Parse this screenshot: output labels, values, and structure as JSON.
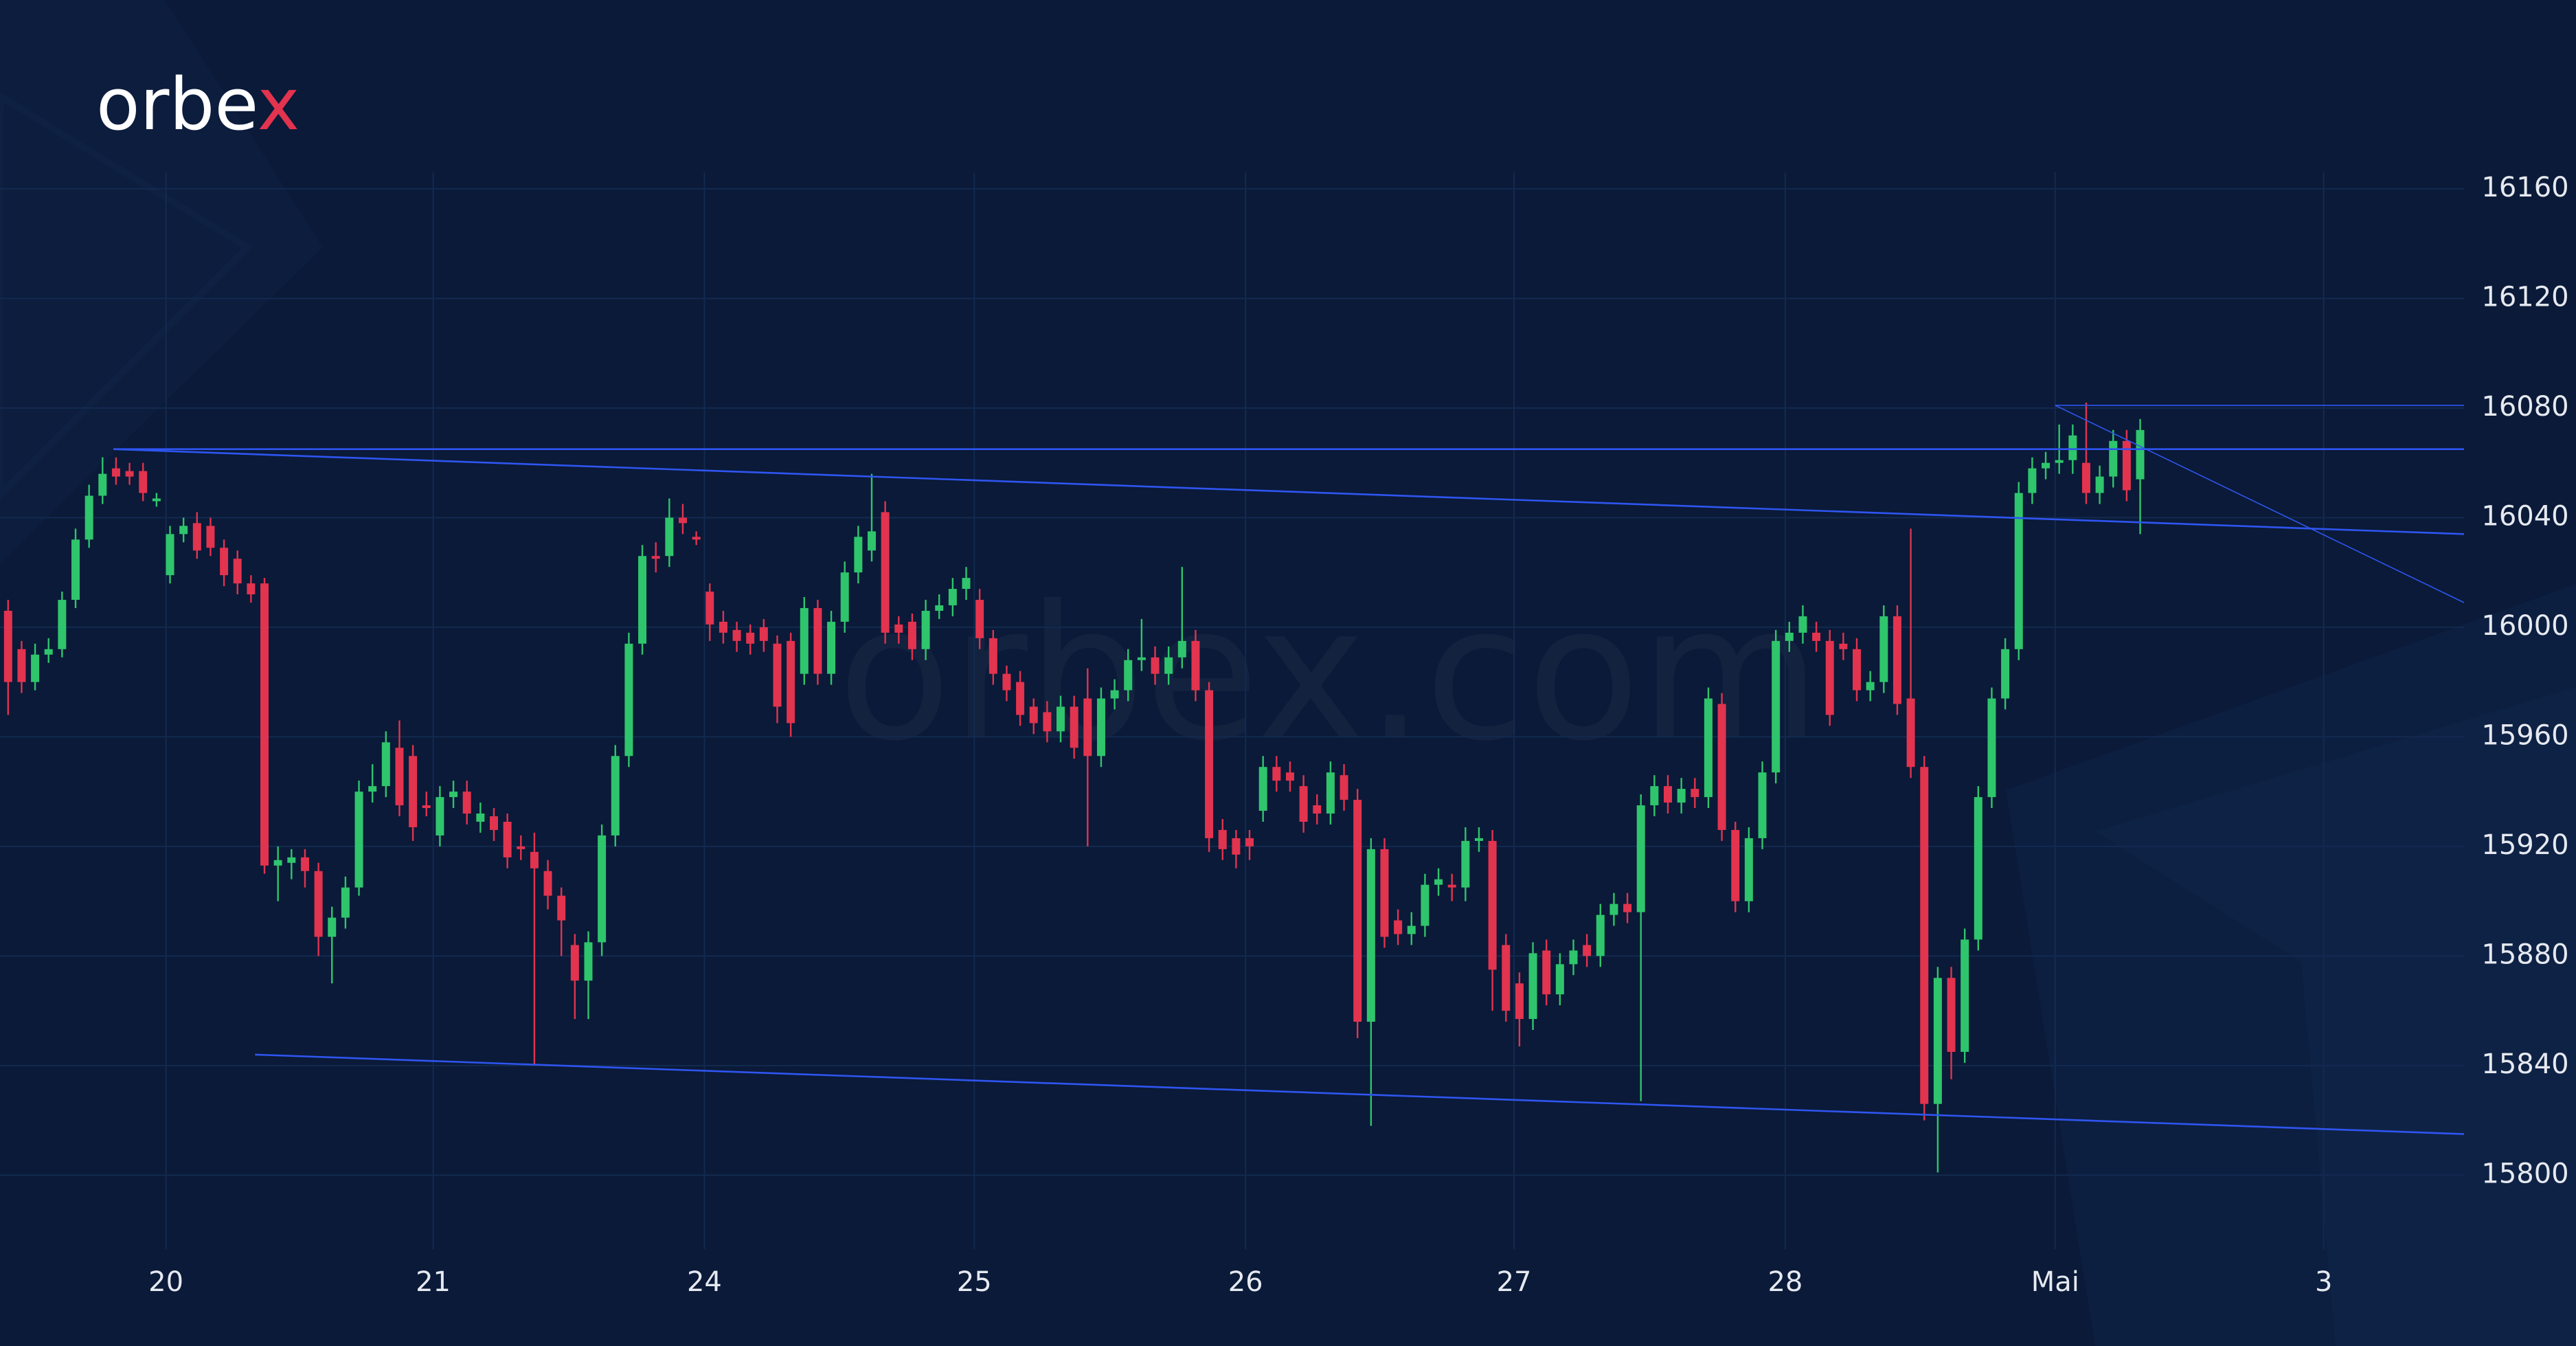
{
  "logo": {
    "text": "orbe",
    "accent": "x"
  },
  "watermark": "orbex.com",
  "chart_data": {
    "type": "candlestick",
    "up_color": "#2fc56c",
    "down_color": "#e2334f",
    "trendline_color": "#2f55f0",
    "grid": true,
    "xlim": [
      -0.6,
      182
    ],
    "ylim": [
      15773,
      16166
    ],
    "yticks": [
      15800,
      15840,
      15880,
      15920,
      15960,
      16000,
      16040,
      16080,
      16120,
      16160
    ],
    "xticks": [
      {
        "value": 11.7,
        "label": "20"
      },
      {
        "value": 31.5,
        "label": "21"
      },
      {
        "value": 51.6,
        "label": "24"
      },
      {
        "value": 71.6,
        "label": "25"
      },
      {
        "value": 91.7,
        "label": "26"
      },
      {
        "value": 111.6,
        "label": "27"
      },
      {
        "value": 131.7,
        "label": "28"
      },
      {
        "value": 151.7,
        "label": "Mai"
      },
      {
        "value": 171.6,
        "label": "3"
      }
    ],
    "open": [
      16006,
      15992,
      15980,
      15990,
      15992,
      16010,
      16032,
      16048,
      16058,
      16057,
      16057,
      16046,
      16019,
      16034,
      16038,
      16037,
      16029,
      16025,
      16016,
      16016,
      15913,
      15914,
      15916,
      15911,
      15887,
      15894,
      15905,
      15940,
      15942,
      15956,
      15953,
      15935,
      15924,
      15938,
      15940,
      15929,
      15931,
      15929,
      15920,
      15918,
      15911,
      15902,
      15884,
      15871,
      15885,
      15924,
      15953,
      15994,
      16026,
      16026,
      16040,
      16033,
      16013,
      16002,
      15999,
      15998,
      16000,
      15994,
      15995,
      15983,
      16007,
      15983,
      16002,
      16020,
      16028,
      16042,
      16001,
      16002,
      15992,
      16006,
      16008,
      16014,
      16010,
      15996,
      15983,
      15980,
      15971,
      15969,
      15962,
      15971,
      15974,
      15953,
      15974,
      15977,
      15988,
      15989,
      15983,
      15989,
      15995,
      15977,
      15926,
      15923,
      15923,
      15933,
      15949,
      15947,
      15942,
      15935,
      15932,
      15946,
      15937,
      15856,
      15919,
      15893,
      15888,
      15891,
      15906,
      15906,
      15905,
      15922,
      15922,
      15884,
      15870,
      15857,
      15882,
      15866,
      15877,
      15884,
      15880,
      15895,
      15899,
      15896,
      15935,
      15942,
      15936,
      15941,
      15938,
      15972,
      15926,
      15900,
      15923,
      15947,
      15995,
      15998,
      15998,
      15995,
      15994,
      15992,
      15977,
      15980,
      16004,
      15974,
      15949,
      15826,
      15872,
      15845,
      15886,
      15938,
      15974,
      15992,
      16049,
      16058,
      16060,
      16061,
      16060,
      16049,
      16055,
      16068,
      16054
    ],
    "high": [
      16010,
      15995,
      15994,
      15996,
      16013,
      16036,
      16052,
      16062,
      16062,
      16060,
      16060,
      16049,
      16037,
      16040,
      16042,
      16040,
      16032,
      16028,
      16019,
      16018,
      15920,
      15919,
      15919,
      15914,
      15898,
      15909,
      15944,
      15950,
      15962,
      15966,
      15957,
      15940,
      15942,
      15944,
      15944,
      15936,
      15934,
      15932,
      15924,
      15925,
      15915,
      15905,
      15888,
      15889,
      15928,
      15957,
      15998,
      16030,
      16031,
      16047,
      16045,
      16035,
      16016,
      16006,
      16002,
      16001,
      16003,
      15997,
      15998,
      16011,
      16010,
      16006,
      16024,
      16037,
      16056,
      16046,
      16004,
      16005,
      16010,
      16012,
      16018,
      16022,
      16014,
      15999,
      15986,
      15984,
      15974,
      15973,
      15975,
      15975,
      15985,
      15978,
      15981,
      15992,
      16003,
      15993,
      15993,
      16022,
      15999,
      15980,
      15930,
      15926,
      15926,
      15953,
      15953,
      15951,
      15946,
      15939,
      15951,
      15950,
      15941,
      15923,
      15923,
      15897,
      15896,
      15910,
      15912,
      15910,
      15927,
      15927,
      15926,
      15888,
      15874,
      15885,
      15886,
      15881,
      15886,
      15888,
      15899,
      15903,
      15903,
      15939,
      15946,
      15946,
      15945,
      15945,
      15978,
      15976,
      15929,
      15927,
      15951,
      15999,
      16002,
      16008,
      16002,
      15999,
      15998,
      15996,
      15984,
      16008,
      16008,
      16036,
      15953,
      15876,
      15876,
      15890,
      15942,
      15978,
      15996,
      16053,
      16062,
      16064,
      16074,
      16074,
      16082,
      16059,
      16072,
      16072,
      16076
    ],
    "low": [
      15968,
      15976,
      15977,
      15987,
      15989,
      16007,
      16029,
      16045,
      16052,
      16052,
      16046,
      16044,
      16016,
      16031,
      16025,
      16026,
      16015,
      16012,
      16009,
      15910,
      15900,
      15908,
      15905,
      15880,
      15870,
      15890,
      15902,
      15936,
      15938,
      15931,
      15922,
      15931,
      15920,
      15934,
      15928,
      15925,
      15922,
      15912,
      15915,
      15840,
      15897,
      15880,
      15857,
      15857,
      15880,
      15920,
      15949,
      15990,
      16020,
      16022,
      16034,
      16030,
      15995,
      15994,
      15991,
      15990,
      15991,
      15965,
      15960,
      15979,
      15979,
      15979,
      15998,
      16016,
      16024,
      15994,
      15994,
      15988,
      15988,
      16003,
      16004,
      16010,
      15992,
      15979,
      15973,
      15964,
      15961,
      15958,
      15958,
      15952,
      15920,
      15949,
      15970,
      15973,
      15984,
      15979,
      15979,
      15985,
      15973,
      15918,
      15915,
      15912,
      15915,
      15929,
      15940,
      15940,
      15925,
      15928,
      15928,
      15933,
      15850,
      15818,
      15883,
      15884,
      15884,
      15887,
      15902,
      15900,
      15900,
      15918,
      15860,
      15856,
      15847,
      15853,
      15862,
      15862,
      15873,
      15876,
      15876,
      15891,
      15892,
      15827,
      15931,
      15932,
      15932,
      15934,
      15934,
      15922,
      15896,
      15896,
      15919,
      15943,
      15991,
      15994,
      15991,
      15964,
      15988,
      15973,
      15973,
      15976,
      15968,
      15945,
      15820,
      15801,
      15835,
      15841,
      15882,
      15934,
      15970,
      15988,
      16045,
      16054,
      16056,
      16056,
      16045,
      16045,
      16051,
      16046,
      16034
    ],
    "close": [
      15980,
      15980,
      15990,
      15992,
      16010,
      16032,
      16048,
      16056,
      16055,
      16055,
      16049,
      16047,
      16034,
      16037,
      16028,
      16029,
      16019,
      16016,
      16012,
      15913,
      15915,
      15916,
      15911,
      15887,
      15894,
      15905,
      15940,
      15942,
      15958,
      15935,
      15927,
      15934,
      15938,
      15940,
      15932,
      15932,
      15926,
      15916,
      15919,
      15912,
      15902,
      15893,
      15871,
      15885,
      15924,
      15953,
      15994,
      16026,
      16025,
      16040,
      16038,
      16032,
      16001,
      15998,
      15995,
      15994,
      15995,
      15971,
      15965,
      16007,
      15983,
      16002,
      16020,
      16033,
      16035,
      15998,
      15998,
      15992,
      16006,
      16008,
      16014,
      16018,
      15996,
      15983,
      15977,
      15968,
      15965,
      15962,
      15971,
      15956,
      15953,
      15974,
      15977,
      15988,
      15989,
      15983,
      15989,
      15995,
      15977,
      15923,
      15919,
      15917,
      15920,
      15949,
      15944,
      15944,
      15929,
      15932,
      15947,
      15937,
      15856,
      15919,
      15887,
      15888,
      15891,
      15906,
      15908,
      15905,
      15922,
      15923,
      15875,
      15860,
      15857,
      15881,
      15866,
      15877,
      15882,
      15880,
      15895,
      15899,
      15896,
      15935,
      15942,
      15936,
      15941,
      15938,
      15974,
      15926,
      15900,
      15923,
      15947,
      15995,
      15998,
      16004,
      15995,
      15968,
      15992,
      15977,
      15980,
      16004,
      15972,
      15949,
      15826,
      15872,
      15845,
      15886,
      15938,
      15974,
      15992,
      16049,
      16058,
      16060,
      16061,
      16070,
      16049,
      16055,
      16068,
      16050,
      16072
    ],
    "trendlines": [
      {
        "x": [
          7.8,
          182
        ],
        "y": [
          16065,
          16065
        ],
        "width": 2.6
      },
      {
        "x": [
          7.8,
          182
        ],
        "y": [
          16065,
          16034
        ],
        "width": 2.6
      },
      {
        "x": [
          18.3,
          182
        ],
        "y": [
          15844,
          15815
        ],
        "width": 2.6
      },
      {
        "x": [
          151.7,
          182
        ],
        "y": [
          16081,
          16081
        ],
        "width": 1.6
      },
      {
        "x": [
          151.7,
          182
        ],
        "y": [
          16081,
          16009
        ],
        "width": 1.6
      }
    ]
  }
}
